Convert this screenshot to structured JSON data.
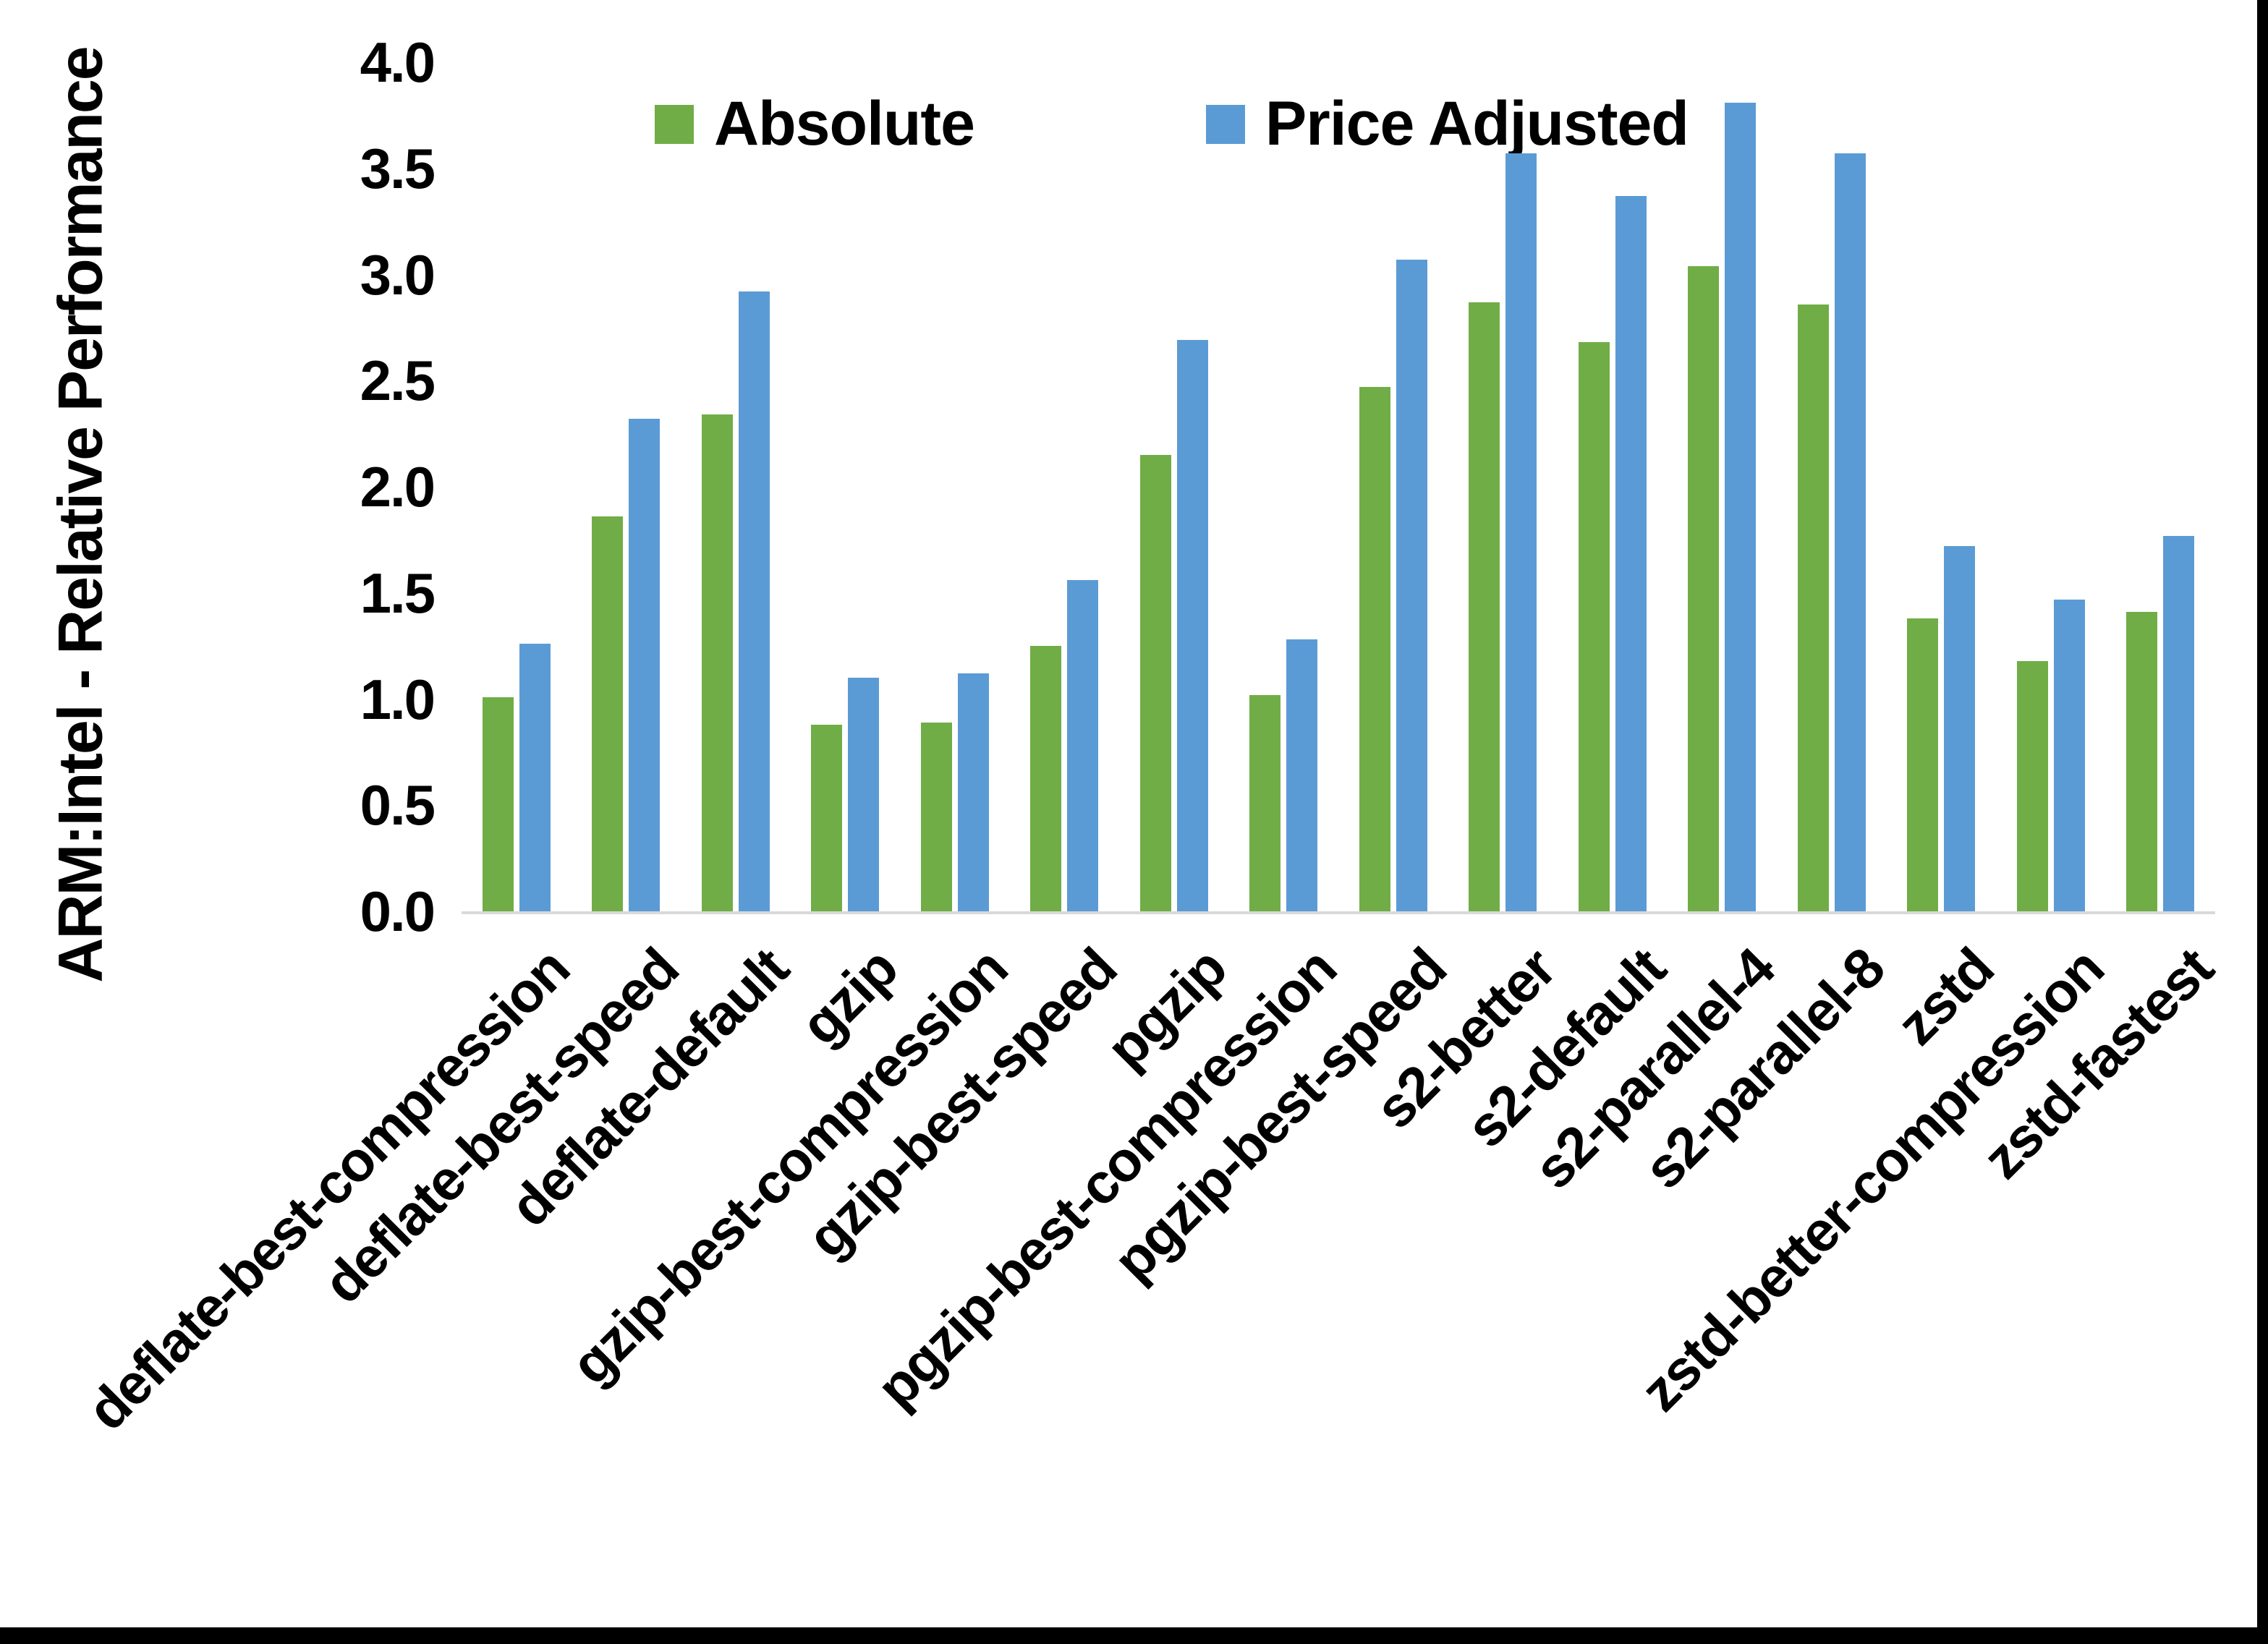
{
  "chart_data": {
    "type": "bar",
    "title": "",
    "xlabel": "",
    "ylabel": "ARM:Intel - Relative Performance",
    "ylim": [
      0.0,
      4.0
    ],
    "y_ticks": [
      "4.0",
      "3.5",
      "3.0",
      "2.5",
      "2.0",
      "1.5",
      "1.0",
      "0.5",
      "0.0"
    ],
    "grid": false,
    "legend_position": "top-center",
    "categories": [
      "deflate-best-compression",
      "deflate-best-speed",
      "deflate-default",
      "gzip",
      "gzip-best-compression",
      "gzip-best-speed",
      "pgzip",
      "pgzip-best-compression",
      "pgzip-best-speed",
      "s2-better",
      "s2-default",
      "s2-parallel-4",
      "s2-parallel-8",
      "zstd",
      "zstd-better-compression",
      "zstd-fastest"
    ],
    "series": [
      {
        "name": "Absolute",
        "color": "#70AD47",
        "values": [
          1.01,
          1.86,
          2.34,
          0.88,
          0.89,
          1.25,
          2.15,
          1.02,
          2.47,
          2.87,
          2.68,
          3.04,
          2.86,
          1.38,
          1.18,
          1.41
        ]
      },
      {
        "name": "Price Adjusted",
        "color": "#5B9BD5",
        "values": [
          1.26,
          2.32,
          2.92,
          1.1,
          1.12,
          1.56,
          2.69,
          1.28,
          3.07,
          3.57,
          3.37,
          3.81,
          3.57,
          1.72,
          1.47,
          1.77
        ]
      }
    ]
  },
  "colors": {
    "background": "#FFFFFF",
    "axis_line": "#D9D9D9",
    "text": "#000000",
    "frame": "#000000"
  }
}
